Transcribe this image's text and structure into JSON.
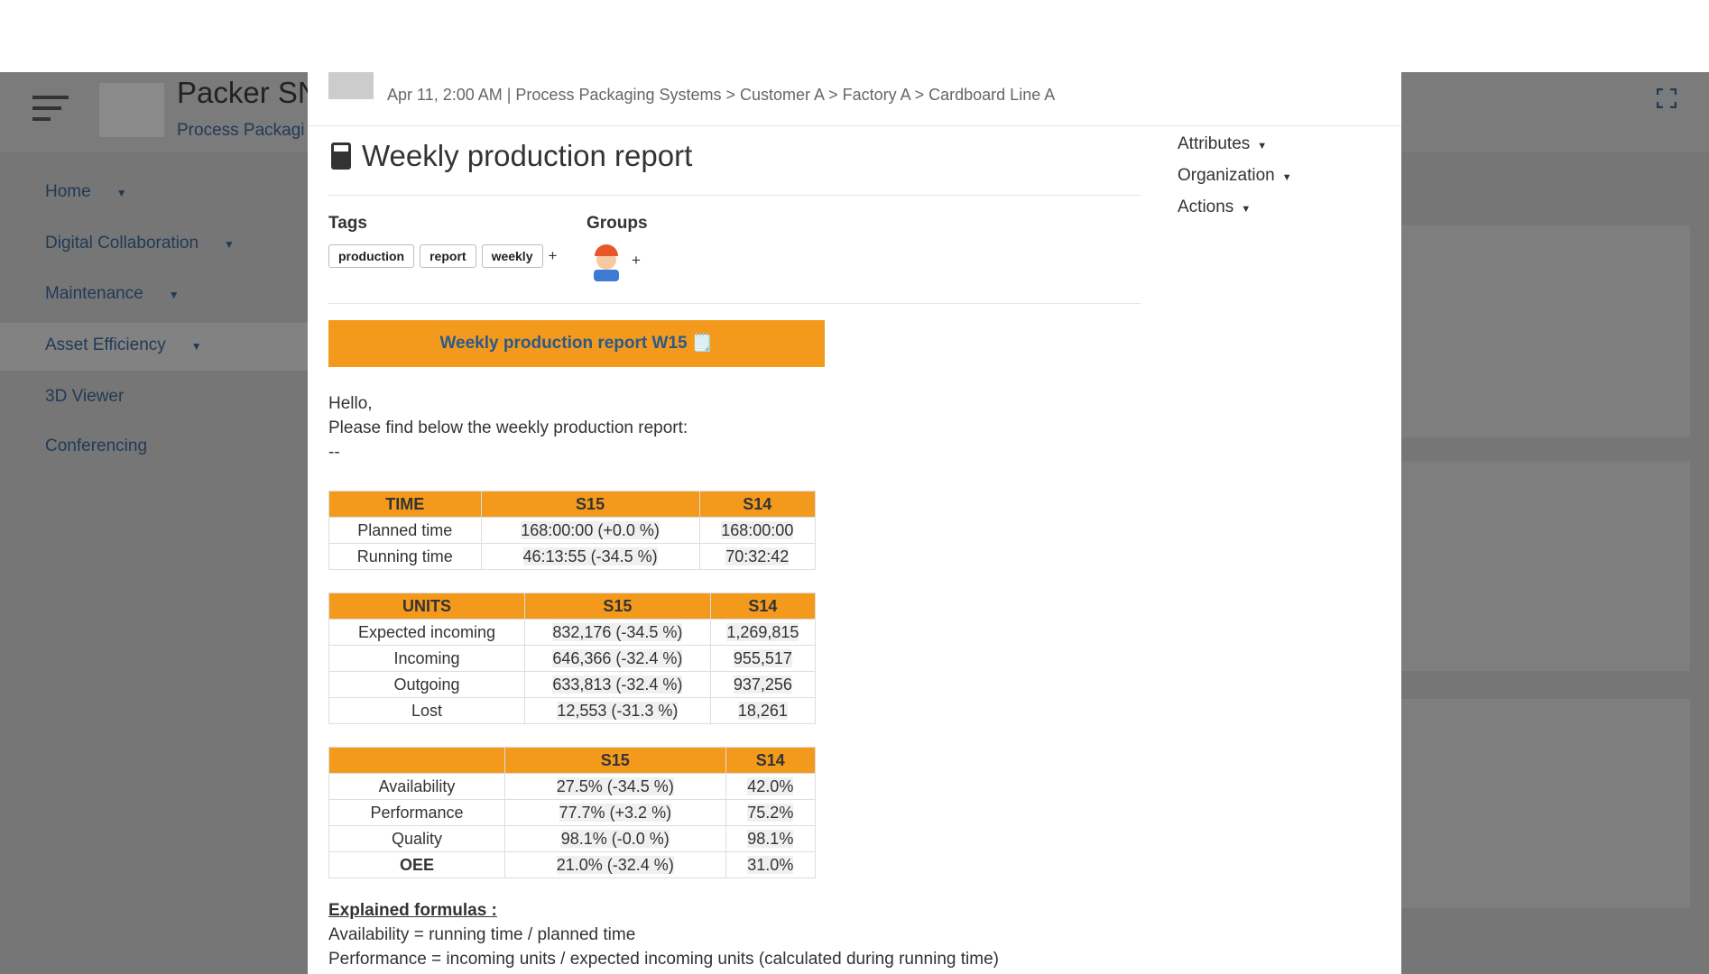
{
  "app": {
    "title": "Packer SN",
    "subtitle": "Process Packagi",
    "nav": [
      "Home",
      "Digital Collaboration",
      "Maintenance",
      "Asset Efficiency",
      "3D Viewer",
      "Conferencing"
    ]
  },
  "modal": {
    "breadcrumb": "Apr 11, 2:00 AM | Process Packaging Systems > Customer A > Factory A > Cardboard Line A",
    "title": "Weekly production report",
    "menu": [
      "Attributes",
      "Organization",
      "Actions"
    ],
    "tags_label": "Tags",
    "tags": [
      "production",
      "report",
      "weekly"
    ],
    "groups_label": "Groups",
    "add": "+",
    "banner": "Weekly production report W15 🗒️",
    "intro": [
      "Hello,",
      "Please find below the weekly production report:",
      "--"
    ],
    "tables": [
      {
        "header": [
          "TIME",
          "S15",
          "S14"
        ],
        "rows": [
          [
            "Planned time",
            "168:00:00 (+0.0 %)",
            "168:00:00"
          ],
          [
            "Running time",
            "46:13:55 (-34.5 %)",
            "70:32:42"
          ]
        ]
      },
      {
        "header": [
          "UNITS",
          "S15",
          "S14"
        ],
        "rows": [
          [
            "Expected incoming",
            "832,176 (-34.5 %)",
            "1,269,815"
          ],
          [
            "Incoming",
            "646,366 (-32.4 %)",
            "955,517"
          ],
          [
            "Outgoing",
            "633,813 (-32.4 %)",
            "937,256"
          ],
          [
            "Lost",
            "12,553 (-31.3 %)",
            "18,261"
          ]
        ]
      },
      {
        "header": [
          "S15",
          "S14"
        ],
        "rows": [
          [
            "Availability",
            "27.5% (-34.5 %)",
            "42.0%"
          ],
          [
            "Performance",
            "77.7% (+3.2 %)",
            "75.2%"
          ],
          [
            "Quality",
            "98.1% (-0.0 %)",
            "98.1%"
          ],
          [
            "OEE",
            "21.0% (-32.4 %)",
            "31.0%"
          ]
        ],
        "bold_last_row": true
      }
    ],
    "formulas_title": "Explained formulas :",
    "formulas": [
      "Availability = running time / planned time",
      "Performance = incoming units / expected incoming units (calculated during running time)"
    ]
  }
}
